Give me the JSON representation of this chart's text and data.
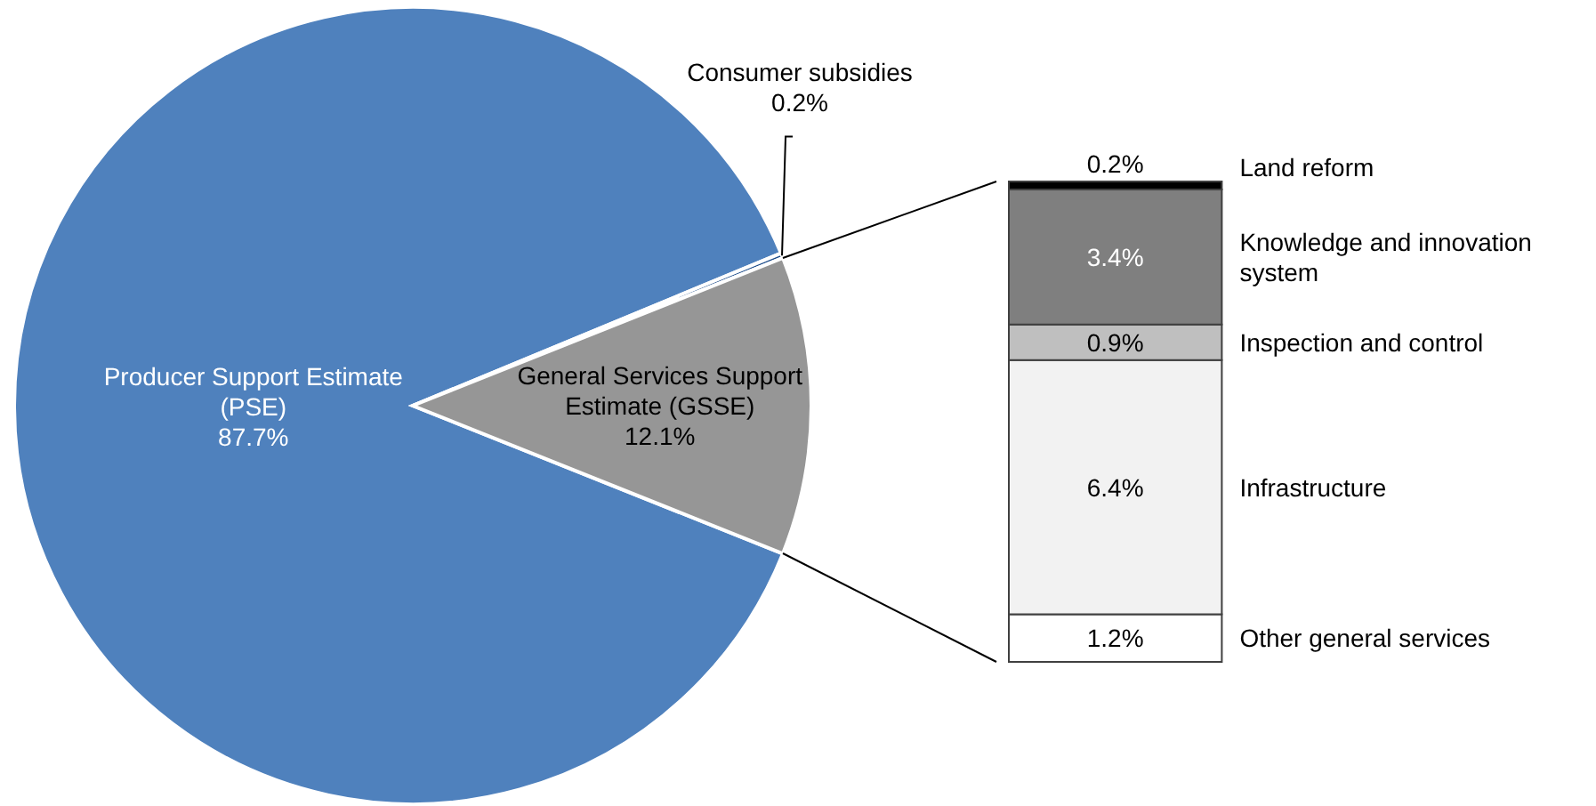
{
  "chart_data": [
    {
      "type": "pie",
      "categories": [
        "Producer Support Estimate (PSE)",
        "Consumer subsidies",
        "General Services Support Estimate (GSSE)"
      ],
      "values": [
        87.7,
        0.2,
        12.1
      ],
      "value_labels": [
        "87.7%",
        "0.2%",
        "12.1%"
      ],
      "colors": [
        "#4f81bd",
        "#1f4e8c",
        "#969696"
      ]
    },
    {
      "type": "bar",
      "stacked": true,
      "categories": [
        null
      ],
      "series": [
        {
          "name": "Other general services",
          "color": "#ffffff",
          "values": [
            1.2
          ],
          "value_labels": [
            "1.2%"
          ]
        },
        {
          "name": "Infrastructure",
          "color": "#f2f2f2",
          "values": [
            6.4
          ],
          "value_labels": [
            "6.4%"
          ]
        },
        {
          "name": "Inspection and control",
          "color": "#bfbfbf",
          "values": [
            0.9
          ],
          "value_labels": [
            "0.9%"
          ]
        },
        {
          "name": "Knowledge and innovation system",
          "color": "#7f7f7f",
          "values": [
            3.4
          ],
          "value_labels": [
            "3.4%"
          ]
        },
        {
          "name": "Land reform",
          "color": "#000000",
          "values": [
            0.2
          ],
          "value_labels": [
            "0.2%"
          ]
        }
      ]
    }
  ]
}
